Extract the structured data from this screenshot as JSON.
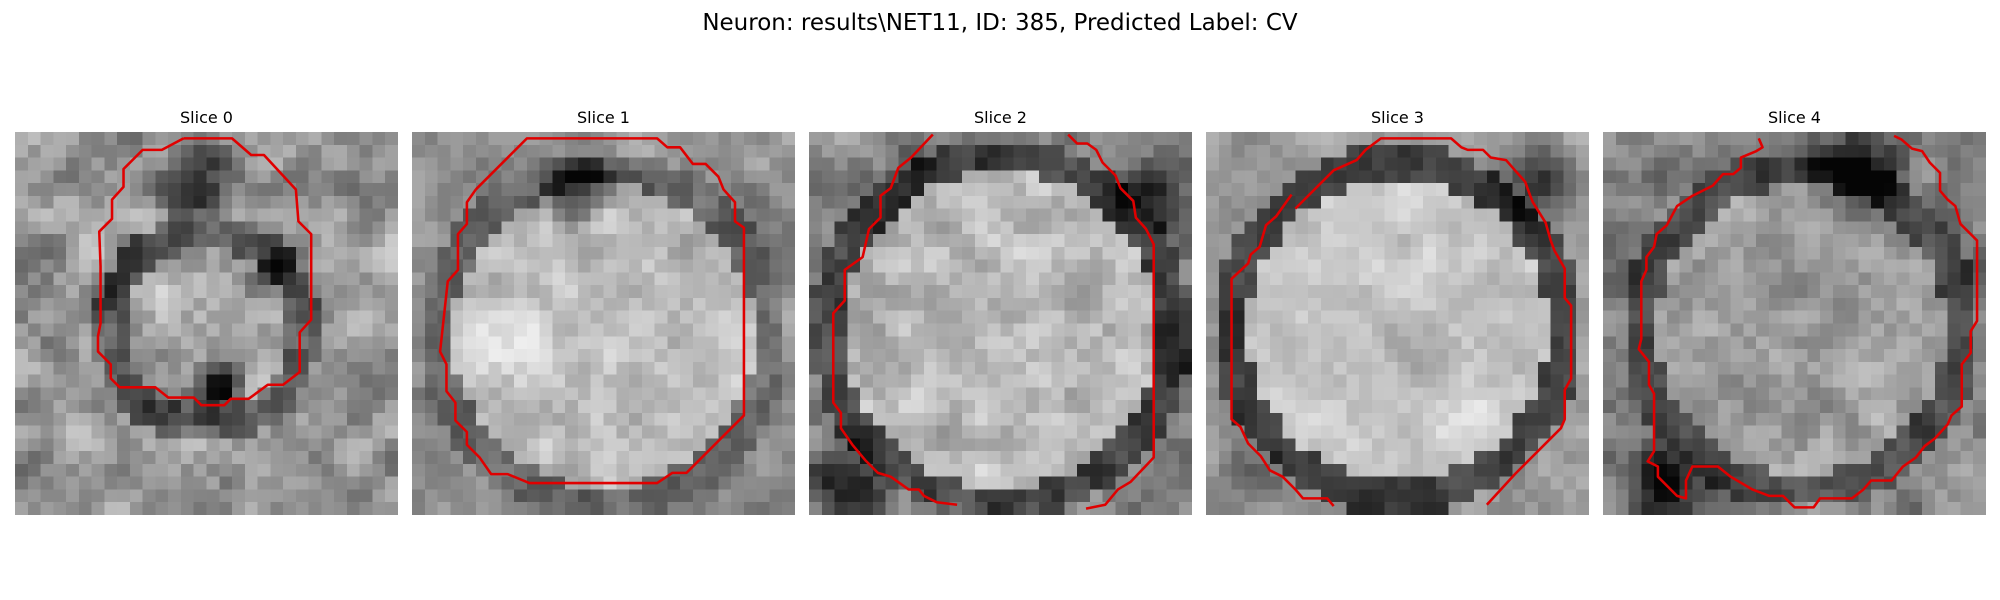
{
  "figure": {
    "title": "Neuron: results\\NET11, ID: 385, Predicted Label: CV"
  },
  "panels": [
    {
      "title": "Slice 0"
    },
    {
      "title": "Slice 1"
    },
    {
      "title": "Slice 2"
    },
    {
      "title": "Slice 3"
    },
    {
      "title": "Slice 4"
    }
  ],
  "colors": {
    "contour": "#e00000",
    "background": "#ffffff"
  }
}
